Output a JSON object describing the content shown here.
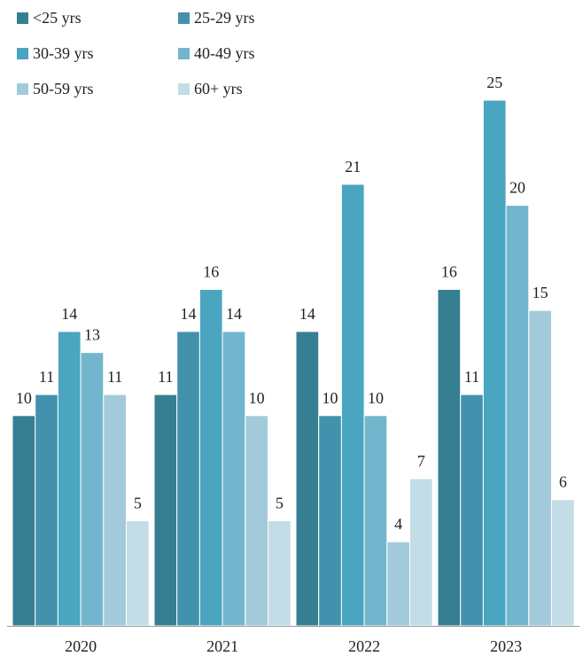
{
  "chart_data": {
    "type": "bar",
    "categories": [
      "2020",
      "2021",
      "2022",
      "2023"
    ],
    "series": [
      {
        "name": "<25 yrs",
        "color": "#367f92",
        "values": [
          10,
          11,
          14,
          16
        ]
      },
      {
        "name": "25-29 yrs",
        "color": "#4292ad",
        "values": [
          11,
          14,
          10,
          11
        ]
      },
      {
        "name": "30-39 yrs",
        "color": "#49a5c0",
        "values": [
          14,
          16,
          21,
          25
        ]
      },
      {
        "name": "40-49 yrs",
        "color": "#72b6ce",
        "values": [
          13,
          14,
          10,
          20
        ]
      },
      {
        "name": "50-59 yrs",
        "color": "#a3cadb",
        "values": [
          11,
          10,
          4,
          15
        ]
      },
      {
        "name": "60+ yrs",
        "color": "#c3dde6",
        "values": [
          5,
          5,
          7,
          6
        ]
      }
    ],
    "ylim": [
      0,
      25
    ],
    "grid": false,
    "legend_position": "top-left",
    "data_labels": true
  }
}
